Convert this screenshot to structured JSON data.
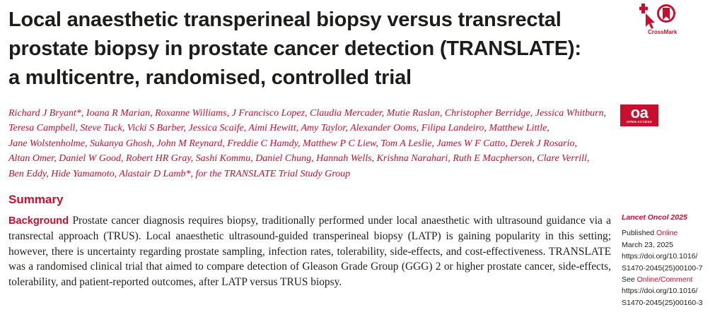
{
  "title_lines": [
    "Local anaesthetic transperineal biopsy versus transrectal",
    "prostate biopsy in prostate cancer detection (TRANSLATE):",
    "a multicentre, randomised, controlled trial"
  ],
  "crossmark_label": "CrossMark",
  "open_access": {
    "mark": "oa",
    "text": "OPEN ACCESS"
  },
  "authors_lines": [
    "Richard J Bryant*, Ioana R Marian, Roxanne Williams, J Francisco Lopez, Claudia Mercader, Mutie Raslan, Christopher Berridge, Jessica Whitburn,",
    "Teresa Campbell, Steve Tuck, Vicki S Barber, Jessica Scaife, Aimi Hewitt, Amy Taylor, Alexander Ooms, Filipa Landeiro, Matthew Little,",
    "Jane Wolstenholme, Sukanya Ghosh, John M Reynard, Freddie C Hamdy, Matthew P C Liew, Tom A Leslie, James W F Catto, Derek J Rosario,",
    "Altan Omer, Daniel W Good, Robert HR Gray, Sashi Kommu, Daniel Chung, Hannah Wells, Krishna Narahari, Ruth E Macpherson, Clare Verrill,",
    "Ben Eddy, Hide Yamamoto, Alastair D Lamb*, for the TRANSLATE Trial Study Group"
  ],
  "summary_heading": "Summary",
  "abstract": {
    "lead": "Background",
    "text": "Prostate cancer diagnosis requires biopsy, traditionally performed under local anaesthetic with ultrasound guidance via a transrectal approach (TRUS). Local anaesthetic ultrasound-guided transperineal biopsy (LATP) is gaining popularity in this setting; however, there is uncertainty regarding prostate sampling, infection rates, tolerability, side-effects, and cost-effectiveness. TRANSLATE was a randomised clinical trial that aimed to compare detection of Gleason Grade Group (GGG) 2 or higher prostate cancer, side-effects, tolerability, and patient-reported outcomes, after LATP versus TRUS biopsy."
  },
  "sidebar": {
    "journal": "Lancet Oncol 2025",
    "published_prefix": "Published ",
    "published_link": "Online",
    "date": "March 23, 2025",
    "doi1_line1": "https://doi.org/10.1016/",
    "doi1_line2": "S1470-2045(25)00100-7",
    "see_prefix": "See ",
    "see_link": "Online/Comment",
    "doi2_line1": "https://doi.org/10.1016/",
    "doi2_line2": "S1470-2045(25)00160-3"
  },
  "colors": {
    "accent": "#c8102e",
    "text": "#1d1d1b"
  }
}
